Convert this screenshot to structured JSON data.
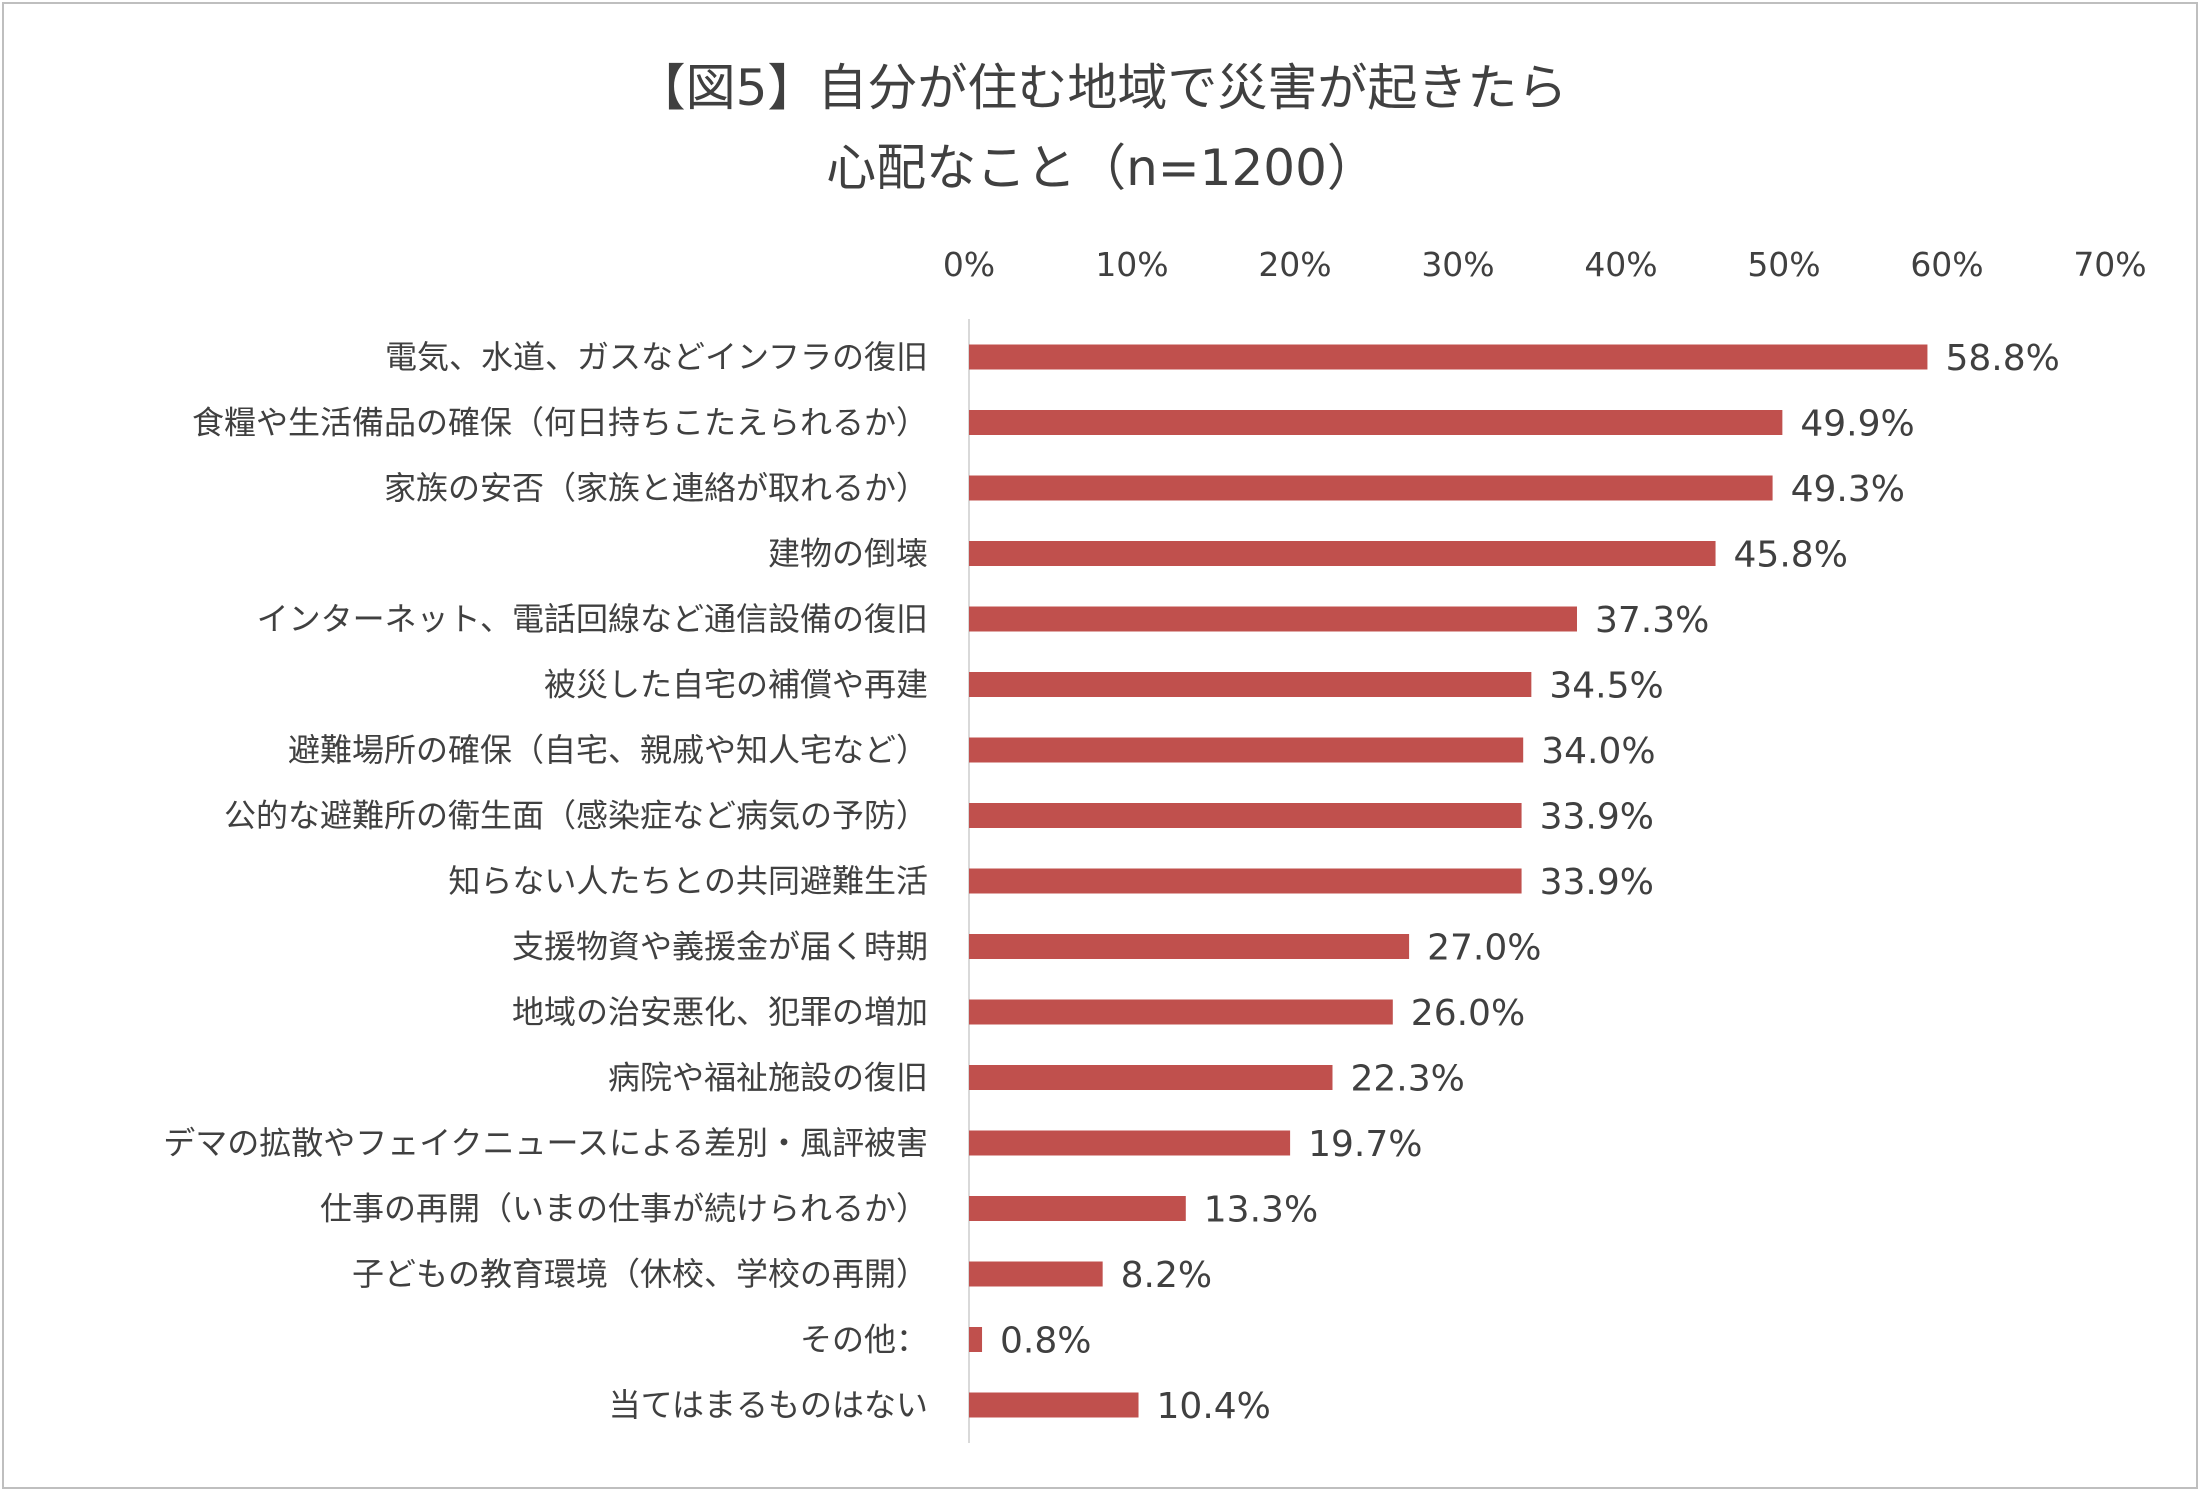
{
  "chart_data": {
    "type": "bar",
    "orientation": "horizontal",
    "title_line1": "【図5】自分が住む地域で災害が起きたら",
    "title_line2": "心配なこと（n=1200）",
    "xlim": [
      0,
      70
    ],
    "ticks": [
      "0%",
      "10%",
      "20%",
      "30%",
      "40%",
      "50%",
      "60%",
      "70%"
    ],
    "tick_values": [
      0,
      10,
      20,
      30,
      40,
      50,
      60,
      70
    ],
    "bar_color": "#c0504d",
    "categories": [
      "電気、水道、ガスなどインフラの復旧",
      "食糧や生活備品の確保（何日持ちこたえられるか）",
      "家族の安否（家族と連絡が取れるか）",
      "建物の倒壊",
      "インターネット、電話回線など通信設備の復旧",
      "被災した自宅の補償や再建",
      "避難場所の確保（自宅、親戚や知人宅など）",
      "公的な避難所の衛生面（感染症など病気の予防）",
      "知らない人たちとの共同避難生活",
      "支援物資や義援金が届く時期",
      "地域の治安悪化、犯罪の増加",
      "病院や福祉施設の復旧",
      "デマの拡散やフェイクニュースによる差別・風評被害",
      "仕事の再開（いまの仕事が続けられるか）",
      "子どもの教育環境（休校、学校の再開）",
      "その他：",
      "当てはまるものはない"
    ],
    "values": [
      58.8,
      49.9,
      49.3,
      45.8,
      37.3,
      34.5,
      34.0,
      33.9,
      33.9,
      27.0,
      26.0,
      22.3,
      19.7,
      13.3,
      8.2,
      0.8,
      10.4
    ],
    "value_labels": [
      "58.8%",
      "49.9%",
      "49.3%",
      "45.8%",
      "37.3%",
      "34.5%",
      "34.0%",
      "33.9%",
      "33.9%",
      "27.0%",
      "26.0%",
      "22.3%",
      "19.7%",
      "13.3%",
      "8.2%",
      "0.8%",
      "10.4%"
    ]
  }
}
